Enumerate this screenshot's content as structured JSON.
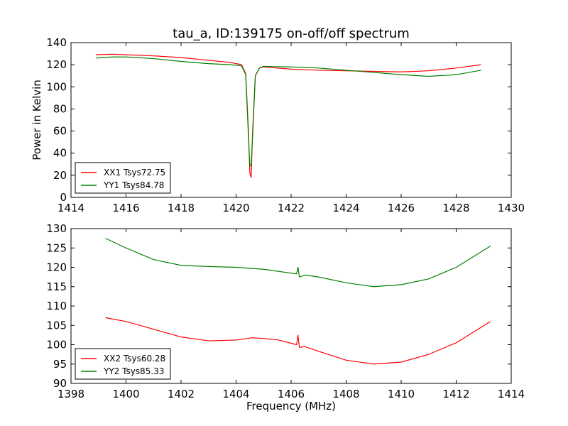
{
  "chart_data": [
    {
      "type": "line",
      "title": "tau_a, ID:139175 on-off/off spectrum",
      "xlabel": "",
      "ylabel": "Power in Kelvin",
      "xlim": [
        1414,
        1430
      ],
      "ylim": [
        0,
        140
      ],
      "xticks": [
        1414,
        1416,
        1418,
        1420,
        1422,
        1424,
        1426,
        1428,
        1430
      ],
      "yticks": [
        0,
        20,
        40,
        60,
        80,
        100,
        120,
        140
      ],
      "legend_position": "lower-left",
      "series": [
        {
          "name": "XX1 Tsys72.75",
          "color": "#ff0000",
          "x": [
            1414.9,
            1415.5,
            1416.0,
            1417.0,
            1418.0,
            1419.0,
            1419.8,
            1420.2,
            1420.35,
            1420.45,
            1420.5,
            1420.55,
            1420.6,
            1420.7,
            1420.85,
            1421.0,
            1422.0,
            1423.0,
            1424.0,
            1425.0,
            1426.0,
            1427.0,
            1428.0,
            1428.9
          ],
          "values": [
            129,
            129.5,
            129,
            128,
            126.5,
            124,
            122,
            120,
            112,
            60,
            22,
            18,
            60,
            110,
            117,
            118,
            116,
            115,
            114.5,
            114,
            113.5,
            114.5,
            117,
            120
          ]
        },
        {
          "name": "YY1 Tsys84.78",
          "color": "#008000",
          "x": [
            1414.9,
            1415.5,
            1416.0,
            1417.0,
            1418.0,
            1419.0,
            1419.8,
            1420.2,
            1420.35,
            1420.45,
            1420.5,
            1420.55,
            1420.6,
            1420.7,
            1420.85,
            1421.0,
            1422.0,
            1423.0,
            1424.0,
            1425.0,
            1426.0,
            1427.0,
            1428.0,
            1428.9
          ],
          "values": [
            126,
            127,
            127,
            125.5,
            123,
            121,
            120,
            119,
            111,
            55,
            28,
            30,
            55,
            110,
            117,
            118.5,
            118,
            117,
            115,
            113,
            111,
            109.5,
            111,
            115
          ]
        }
      ]
    },
    {
      "type": "line",
      "title": "",
      "xlabel": "Frequency (MHz)",
      "ylabel": "",
      "xlim": [
        1398,
        1414
      ],
      "ylim": [
        90,
        130
      ],
      "xticks": [
        1398,
        1400,
        1402,
        1404,
        1406,
        1408,
        1410,
        1412,
        1414
      ],
      "yticks": [
        90,
        95,
        100,
        105,
        110,
        115,
        120,
        125,
        130
      ],
      "legend_position": "lower-left",
      "series": [
        {
          "name": "XX2 Tsys60.28",
          "color": "#ff0000",
          "x": [
            1399.25,
            1400.0,
            1401.0,
            1402.0,
            1403.0,
            1404.0,
            1404.6,
            1405.5,
            1406.2,
            1406.25,
            1406.3,
            1406.5,
            1407.0,
            1408.0,
            1409.0,
            1410.0,
            1411.0,
            1412.0,
            1413.25
          ],
          "values": [
            107,
            106,
            104,
            102,
            101,
            101.2,
            101.8,
            101.3,
            100,
            102.5,
            99.3,
            99.5,
            98.3,
            96,
            95,
            95.5,
            97.5,
            100.5,
            106
          ]
        },
        {
          "name": "YY2 Tsys85.33",
          "color": "#008000",
          "x": [
            1399.25,
            1400.0,
            1401.0,
            1402.0,
            1403.0,
            1404.0,
            1405.0,
            1406.0,
            1406.2,
            1406.25,
            1406.3,
            1406.5,
            1407.0,
            1408.0,
            1409.0,
            1410.0,
            1411.0,
            1412.0,
            1413.25
          ],
          "values": [
            127.5,
            125,
            122,
            120.5,
            120.2,
            120,
            119.5,
            118.5,
            118.3,
            120,
            117.5,
            118,
            117.5,
            116,
            115,
            115.5,
            117,
            120,
            125.5
          ]
        }
      ]
    }
  ]
}
